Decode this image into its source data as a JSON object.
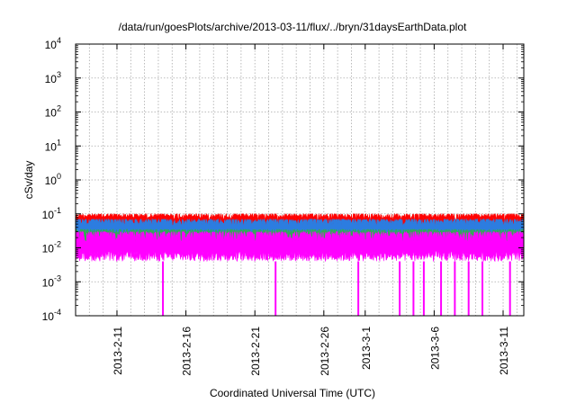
{
  "chart_data": {
    "type": "line",
    "title": "/data/run/goesPlots/archive/2013-03-11/flux/../bryn/31daysEarthData.plot",
    "xlabel": "Coordinated Universal Time (UTC)",
    "ylabel": "cSv/day",
    "yscale": "log",
    "ylim": [
      0.0001,
      10000
    ],
    "y_ticks": [
      {
        "value": 0.0001,
        "base": "10",
        "exp": "-4"
      },
      {
        "value": 0.001,
        "base": "10",
        "exp": "-3"
      },
      {
        "value": 0.01,
        "base": "10",
        "exp": "-2"
      },
      {
        "value": 0.1,
        "base": "10",
        "exp": "-1"
      },
      {
        "value": 1,
        "base": "10",
        "exp": "0"
      },
      {
        "value": 10,
        "base": "10",
        "exp": "1"
      },
      {
        "value": 100,
        "base": "10",
        "exp": "2"
      },
      {
        "value": 1000,
        "base": "10",
        "exp": "3"
      },
      {
        "value": 10000,
        "base": "10",
        "exp": "4"
      }
    ],
    "xlim": [
      "2013-02-08",
      "2013-03-12T12:00"
    ],
    "x_ticks": [
      {
        "date": "2013-02-11",
        "label": "2013-2-11"
      },
      {
        "date": "2013-02-16",
        "label": "2013-2-16"
      },
      {
        "date": "2013-02-21",
        "label": "2013-2-21"
      },
      {
        "date": "2013-02-26",
        "label": "2013-2-26"
      },
      {
        "date": "2013-03-01",
        "label": "2013-3-1"
      },
      {
        "date": "2013-03-06",
        "label": "2013-3-6"
      },
      {
        "date": "2013-03-11",
        "label": "2013-3-11"
      }
    ],
    "grid": true,
    "series": [
      {
        "color": "#ff0000",
        "typical_range": [
          0.03,
          0.1
        ]
      },
      {
        "color": "#2c7de0",
        "typical_range": [
          0.02,
          0.07
        ]
      },
      {
        "color": "#33aa55",
        "typical_range": [
          0.012,
          0.035
        ]
      },
      {
        "color": "#ff00ff",
        "typical_range": [
          0.004,
          0.03
        ],
        "dropouts": [
          "2013-02-14T08:00",
          "2013-02-22T12:00",
          "2013-02-28T12:00",
          "2013-03-03T12:00",
          "2013-03-04T12:00",
          "2013-03-05T06:00",
          "2013-03-06T12:00",
          "2013-03-07T12:00",
          "2013-03-08T12:00",
          "2013-03-09T12:00",
          "2013-03-11T12:00"
        ]
      }
    ]
  }
}
